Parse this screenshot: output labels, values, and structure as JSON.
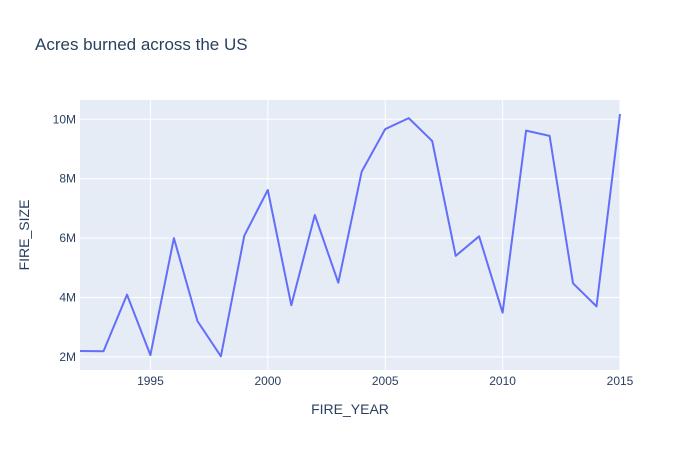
{
  "chart_data": {
    "type": "line",
    "title": "Acres burned across the US",
    "xlabel": "FIRE_YEAR",
    "ylabel": "FIRE_SIZE",
    "xlim": [
      1992,
      2015
    ],
    "ylim": [
      1560000,
      10650000
    ],
    "x_ticks": [
      1995,
      2000,
      2005,
      2010,
      2015
    ],
    "y_ticks": [
      2000000,
      4000000,
      6000000,
      8000000,
      10000000
    ],
    "y_tick_labels": [
      "2M",
      "4M",
      "6M",
      "8M",
      "10M"
    ],
    "grid": true,
    "series": [
      {
        "x": [
          1992,
          1993,
          1994,
          1995,
          1996,
          1997,
          1998,
          1999,
          2000,
          2001,
          2002,
          2003,
          2004,
          2005,
          2006,
          2007,
          2008,
          2009,
          2010,
          2011,
          2012,
          2013,
          2014,
          2015
        ],
        "values": [
          2200000,
          2190000,
          4100000,
          2060000,
          6000000,
          3210000,
          2020000,
          6080000,
          7620000,
          3740000,
          6780000,
          4500000,
          8240000,
          9670000,
          10040000,
          9270000,
          5400000,
          6060000,
          3490000,
          9620000,
          9440000,
          4480000,
          3700000,
          10180000
        ]
      }
    ],
    "colors": {
      "line": "#636efa",
      "plot_bg": "#e5ecf6",
      "grid": "#ffffff",
      "text": "#2a3f5f"
    }
  }
}
